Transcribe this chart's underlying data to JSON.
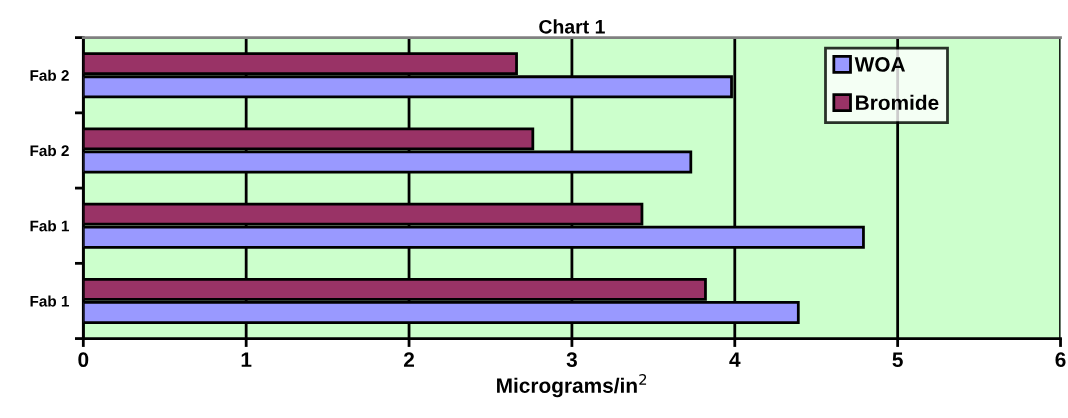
{
  "chart_data": {
    "type": "bar",
    "orientation": "horizontal",
    "title": "Chart 1",
    "xlabel": "Micrograms/in$^{2}$",
    "categories": [
      "Fab 2",
      "Fab 2",
      "Fab 1",
      "Fab 1"
    ],
    "series": [
      {
        "name": "WOA",
        "color": "#9999ff",
        "values": [
          3.98,
          3.73,
          4.79,
          4.39
        ]
      },
      {
        "name": "Bromide",
        "color": "#993366",
        "values": [
          2.66,
          2.76,
          3.43,
          3.82
        ]
      }
    ],
    "xlim": [
      0,
      6
    ],
    "xticks": [
      0,
      1,
      2,
      3,
      4,
      5,
      6
    ],
    "grid": "x",
    "legend": "top right"
  }
}
